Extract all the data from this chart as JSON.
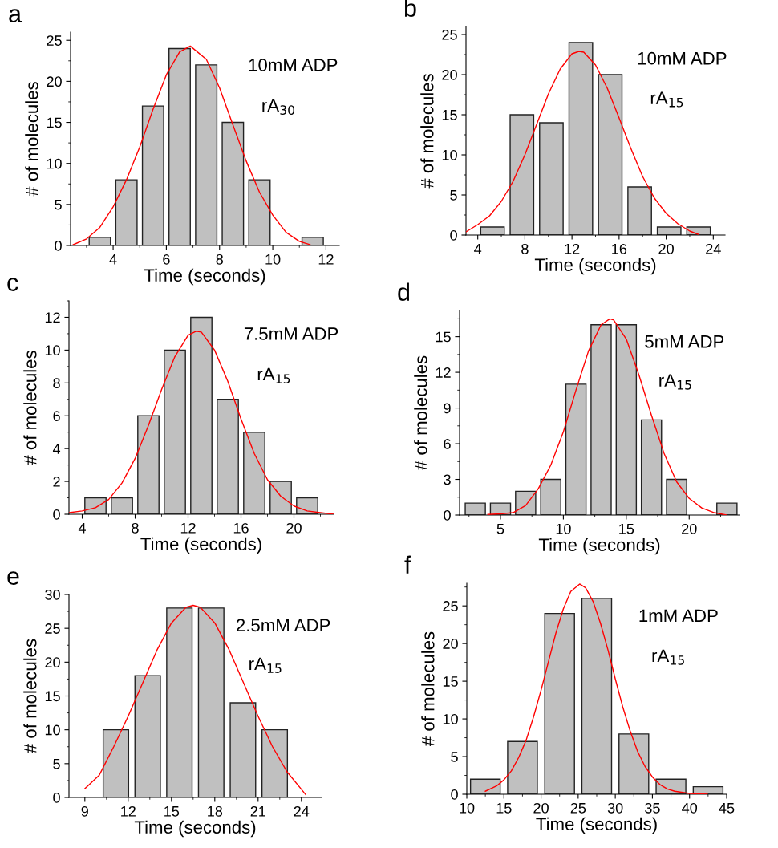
{
  "chart_data": [
    {
      "type": "histogram",
      "title": "a",
      "xlabel": "Time (seconds)",
      "ylabel": "# of molecules",
      "annotations": [
        "10mM ADP",
        "rA$_{30}$"
      ],
      "bins": [
        3,
        4,
        5,
        6,
        7,
        8,
        9,
        10,
        11,
        12
      ],
      "values": [
        1,
        8,
        17,
        24,
        22,
        15,
        8,
        0,
        1
      ],
      "color": "#c0c0c0",
      "series": [
        {
          "type": "line",
          "color": "#ff0000",
          "x": [
            2.5,
            3,
            3.5,
            4,
            4.5,
            5,
            5.5,
            6,
            6.5,
            6.9,
            7.5,
            8,
            8.5,
            9,
            9.5,
            10,
            10.5,
            11,
            11.4
          ],
          "values": [
            0.1,
            0.8,
            2.2,
            4.7,
            8,
            12,
            16.6,
            20.8,
            23.6,
            24.3,
            22.7,
            19.2,
            14.7,
            10.3,
            6.5,
            3.7,
            1.6,
            0.5,
            0.1
          ]
        }
      ],
      "xlim": [
        2.4,
        12.5
      ],
      "xticks": [
        4,
        6,
        8,
        10,
        12
      ],
      "ylim": [
        0,
        26
      ],
      "yticks": [
        0,
        5,
        10,
        15,
        20,
        25
      ],
      "grid": false,
      "legend": false
    },
    {
      "type": "histogram",
      "title": "b",
      "xlabel": "Time (seconds)",
      "ylabel": "# of molecules",
      "annotations": [
        "10mM ADP",
        "rA$_{15}$"
      ],
      "bins": [
        4,
        6.5,
        9,
        11.5,
        14,
        16.5,
        19,
        21.5,
        24
      ],
      "values": [
        1,
        15,
        14,
        24,
        20,
        6,
        1,
        1
      ],
      "color": "#c0c0c0",
      "series": [
        {
          "type": "line",
          "color": "#ff0000",
          "x": [
            3,
            4,
            5,
            6,
            7,
            8,
            9,
            10,
            11,
            12,
            12.6,
            13,
            14,
            15,
            16,
            17,
            18,
            19,
            20,
            21,
            22,
            22.7
          ],
          "values": [
            0.4,
            1.3,
            2.4,
            4.2,
            6.7,
            10,
            13.8,
            17.6,
            20.7,
            22.6,
            22.9,
            22.8,
            21.2,
            18.3,
            14.6,
            10.8,
            7.3,
            4.6,
            2.7,
            1.4,
            0.5,
            0.1
          ]
        }
      ],
      "xlim": [
        3,
        25
      ],
      "xticks": [
        4,
        8,
        12,
        16,
        20,
        24
      ],
      "ylim": [
        0,
        26
      ],
      "yticks": [
        0,
        5,
        10,
        15,
        20,
        25
      ],
      "grid": false,
      "legend": false
    },
    {
      "type": "histogram",
      "title": "c",
      "xlabel": "Time (seconds)",
      "ylabel": "# of molecules",
      "annotations": [
        "7.5mM ADP",
        "rA$_{15}$"
      ],
      "bins": [
        4,
        6,
        8,
        10,
        12,
        14,
        16,
        18,
        20,
        22
      ],
      "values": [
        1,
        1,
        6,
        10,
        12,
        7,
        5,
        2,
        1
      ],
      "color": "#c0c0c0",
      "series": [
        {
          "type": "line",
          "color": "#ff0000",
          "x": [
            3,
            4,
            5,
            6,
            7,
            8,
            9,
            10,
            11,
            12,
            12.6,
            13,
            14,
            15,
            16,
            17,
            18,
            19,
            20,
            21,
            22,
            23
          ],
          "values": [
            0.1,
            0.2,
            0.4,
            0.9,
            1.9,
            3.4,
            5.4,
            7.6,
            9.6,
            10.9,
            11.15,
            11.1,
            10,
            8.1,
            5.8,
            3.7,
            2.1,
            1.1,
            0.5,
            0.2,
            0.1,
            0
          ]
        }
      ],
      "xlim": [
        3,
        23
      ],
      "xticks": [
        4,
        8,
        12,
        16,
        20
      ],
      "ylim": [
        0,
        13
      ],
      "yticks": [
        0,
        2,
        4,
        6,
        8,
        10,
        12
      ],
      "grid": false,
      "legend": false
    },
    {
      "type": "histogram",
      "title": "d",
      "xlabel": "Time (seconds)",
      "ylabel": "# of molecules",
      "annotations": [
        "5mM ADP",
        "rA$_{15}$"
      ],
      "bins": [
        2,
        4,
        6,
        8,
        10,
        12,
        14,
        16,
        18,
        20,
        22,
        24
      ],
      "values": [
        1,
        1,
        2,
        3,
        11,
        16,
        16,
        8,
        3,
        0,
        1
      ],
      "color": "#c0c0c0",
      "series": [
        {
          "type": "line",
          "color": "#ff0000",
          "x": [
            4,
            5,
            6,
            7,
            8,
            9,
            10,
            11,
            12,
            13,
            13.7,
            14,
            15,
            16,
            17,
            18,
            19,
            20,
            21,
            22,
            23
          ],
          "values": [
            0.05,
            0.1,
            0.2,
            0.8,
            2.2,
            4.2,
            7,
            10.5,
            13.8,
            16,
            16.5,
            16.4,
            14.8,
            11.8,
            8.4,
            5.2,
            2.8,
            1.4,
            0.6,
            0.2,
            0
          ]
        }
      ],
      "xlim": [
        1.75,
        24
      ],
      "xticks": [
        5,
        10,
        15,
        20
      ],
      "ylim": [
        0,
        17.2
      ],
      "yticks": [
        0,
        3,
        6,
        9,
        12,
        15
      ],
      "grid": false,
      "legend": false
    },
    {
      "type": "histogram",
      "title": "e",
      "xlabel": "Time (seconds)",
      "ylabel": "# of molecules",
      "annotations": [
        "2.5mM ADP",
        "rA$_{15}$"
      ],
      "bins": [
        10.05,
        12.25,
        14.45,
        16.65,
        18.85,
        21.05,
        23.25
      ],
      "values": [
        10,
        18,
        28,
        28,
        14,
        10
      ],
      "color": "#c0c0c0",
      "series": [
        {
          "type": "line",
          "color": "#ff0000",
          "x": [
            9,
            10,
            11,
            12,
            13,
            14,
            15,
            16,
            16.5,
            17,
            18,
            19,
            20,
            21,
            22,
            23,
            24,
            24.3
          ],
          "values": [
            1.3,
            3.3,
            7.5,
            12,
            16.9,
            21.8,
            25.8,
            28.1,
            28.4,
            28.1,
            25.8,
            21.8,
            16.9,
            12,
            7.5,
            3.8,
            1.2,
            0.4
          ]
        }
      ],
      "xlim": [
        7.9,
        25.4
      ],
      "xticks": [
        9,
        12,
        15,
        18,
        21,
        24
      ],
      "ylim": [
        0,
        30
      ],
      "yticks": [
        0,
        5,
        10,
        15,
        20,
        25,
        30
      ],
      "grid": false,
      "legend": false
    },
    {
      "type": "histogram",
      "title": "f",
      "xlabel": "Time (seconds)",
      "ylabel": "# of molecules",
      "annotations": [
        "1mM ADP",
        "rA$_{15}$"
      ],
      "bins": [
        10,
        15,
        20,
        25,
        30,
        35,
        40,
        45
      ],
      "values": [
        2,
        7,
        24,
        26,
        8,
        2,
        1
      ],
      "color": "#c0c0c0",
      "series": [
        {
          "type": "line",
          "color": "#ff0000",
          "x": [
            12.5,
            14,
            15,
            16,
            17,
            18,
            19,
            20,
            21,
            22,
            23,
            24,
            25.2,
            26,
            27,
            28,
            29,
            30,
            31,
            32,
            33,
            34,
            35,
            36,
            37,
            38,
            40,
            42.4
          ],
          "values": [
            0.4,
            1.1,
            1.9,
            3.1,
            4.9,
            7.2,
            10.3,
            13.8,
            17.6,
            21.4,
            24.6,
            26.9,
            27.9,
            27.4,
            25.6,
            22.7,
            19.2,
            15.3,
            11.6,
            8.4,
            5.7,
            3.7,
            2.3,
            1.3,
            0.7,
            0.4,
            0.1,
            0
          ]
        }
      ],
      "xlim": [
        10,
        45
      ],
      "xticks": [
        10,
        15,
        20,
        25,
        30,
        35,
        40,
        45
      ],
      "ylim": [
        0,
        28
      ],
      "yticks": [
        0,
        5,
        10,
        15,
        20,
        25
      ],
      "grid": false,
      "legend": false
    }
  ]
}
